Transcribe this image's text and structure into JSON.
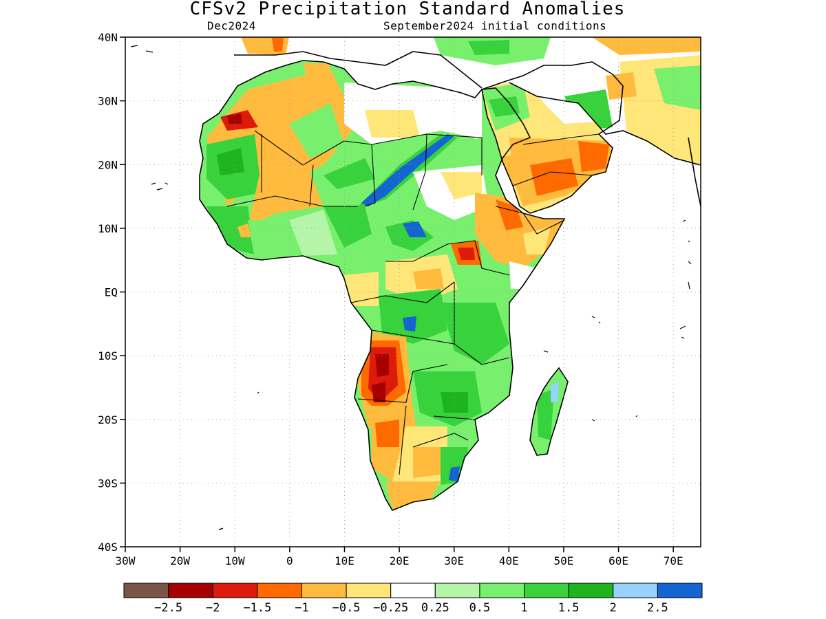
{
  "header": {
    "title": "CFSv2 Precipitation Standard Anomalies",
    "valid_period": "Dec2024",
    "initial_conditions": "September2024 initial conditions"
  },
  "map": {
    "region": "Africa, Arabian Peninsula and Madagascar",
    "lon_range": [
      -30,
      75
    ],
    "lat_range": [
      -40,
      40
    ],
    "lat_labels": [
      "40N",
      "30N",
      "20N",
      "10N",
      "EQ",
      "10S",
      "20S",
      "30S",
      "40S"
    ],
    "lon_labels": [
      "30W",
      "20W",
      "10W",
      "0",
      "10E",
      "20E",
      "30E",
      "40E",
      "50E",
      "60E",
      "70E"
    ],
    "gridlines": "dotted",
    "ocean_color": "#ffffff",
    "boundary_color": "#000000"
  },
  "legend": {
    "placement": "bottom",
    "colors": [
      "#7a5547",
      "#a60000",
      "#de1a0b",
      "#ff6a00",
      "#ffbb3d",
      "#ffe678",
      "#ffffff",
      "#b4f5a9",
      "#78f06e",
      "#37d23c",
      "#1eb41e",
      "#96d2fa",
      "#1464d2"
    ],
    "labels": [
      "-2.5",
      "-2",
      "-1.5",
      "-1",
      "-0.5",
      "-0.25",
      "0.25",
      "0.5",
      "1",
      "1.5",
      "2",
      "2.5"
    ]
  }
}
